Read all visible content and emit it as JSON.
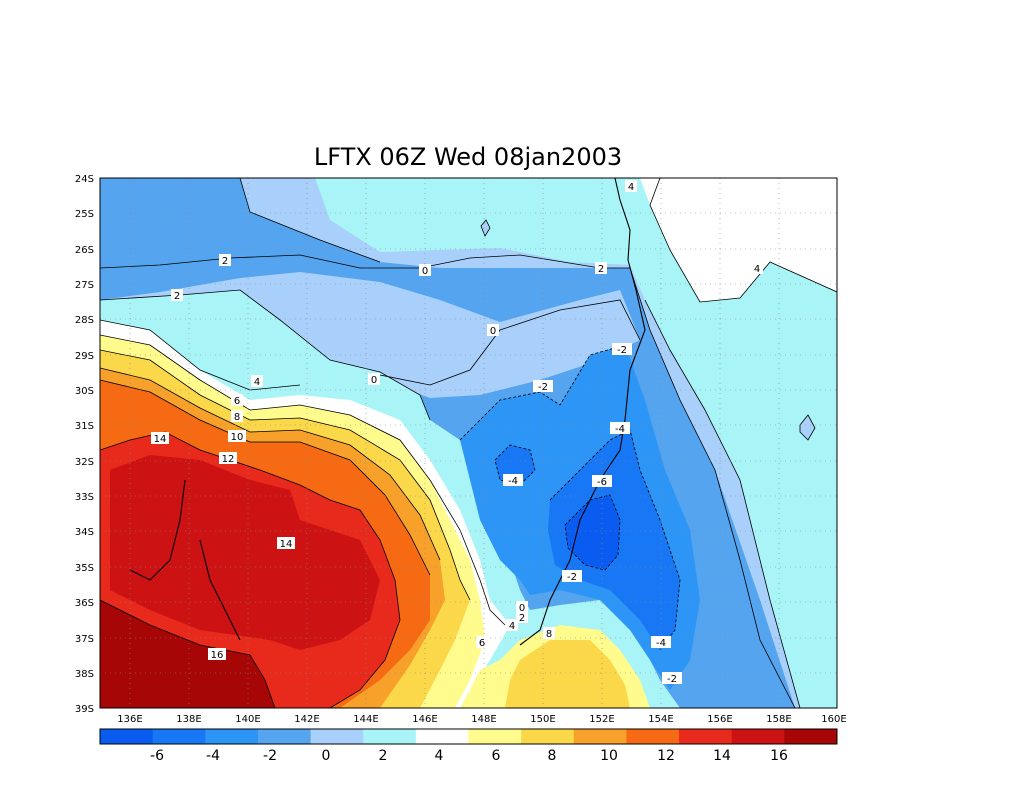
{
  "map": {
    "title": "LFTX 06Z Wed 08jan2003",
    "lat_labels": [
      "24S",
      "25S",
      "26S",
      "27S",
      "28S",
      "29S",
      "30S",
      "31S",
      "32S",
      "33S",
      "34S",
      "35S",
      "36S",
      "37S",
      "38S",
      "39S"
    ],
    "lon_labels": [
      "136E",
      "138E",
      "140E",
      "142E",
      "144E",
      "146E",
      "148E",
      "150E",
      "152E",
      "154E",
      "156E",
      "158E",
      "160E"
    ],
    "lat_range": [
      -39,
      -24
    ],
    "lon_range": [
      135,
      160
    ],
    "grid": "dotted"
  },
  "colorbar": {
    "labels": [
      "-6",
      "-4",
      "-2",
      "0",
      "2",
      "4",
      "6",
      "8",
      "10",
      "12",
      "14",
      "16"
    ],
    "colors": [
      "#0a5cf0",
      "#1877f5",
      "#2d95f5",
      "#55a4f0",
      "#a8d0fa",
      "#a8f4f7",
      "#ffffff",
      "#fffb8c",
      "#fbd84a",
      "#f7a02a",
      "#f56a12",
      "#e82a1c",
      "#cc1212",
      "#a70606"
    ]
  },
  "contour_labels": [
    {
      "text": "4"
    },
    {
      "text": "2"
    },
    {
      "text": "0"
    },
    {
      "text": "2"
    },
    {
      "text": "2"
    },
    {
      "text": "0"
    },
    {
      "text": "4"
    },
    {
      "text": "-2"
    },
    {
      "text": "-2"
    },
    {
      "text": "0"
    },
    {
      "text": "4"
    },
    {
      "text": "6"
    },
    {
      "text": "8"
    },
    {
      "text": "10"
    },
    {
      "text": "12"
    },
    {
      "text": "14"
    },
    {
      "text": "-4"
    },
    {
      "text": "-4"
    },
    {
      "text": "-6"
    },
    {
      "text": "14"
    },
    {
      "text": "-2"
    },
    {
      "text": "0"
    },
    {
      "text": "2"
    },
    {
      "text": "4"
    },
    {
      "text": "6"
    },
    {
      "text": "8"
    },
    {
      "text": "-4"
    },
    {
      "text": "-2"
    },
    {
      "text": "16"
    }
  ]
}
